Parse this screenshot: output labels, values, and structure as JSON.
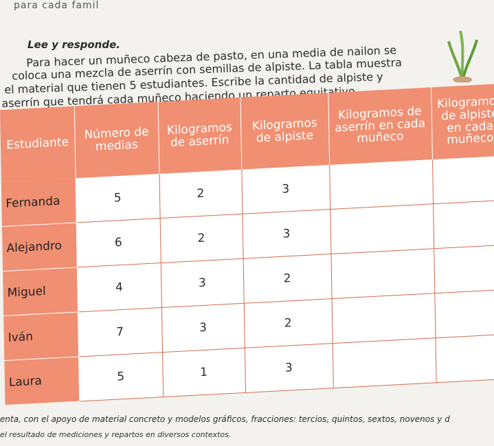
{
  "top_note": "para cada famil",
  "heading": "Lee y responde.",
  "paragraph": [
    "Para hacer un muñeco cabeza de pasto, en una media de nailon se",
    "coloca una mezcla de aserrín con semillas de alpiste. La tabla muestra",
    "el material que tienen 5 estudiantes. Escribe la cantidad de alpiste y",
    "aserrín que tendrá cada muñeco haciendo un reparto equitativo."
  ],
  "table": {
    "headers": [
      "Estudiante",
      "Número de medias",
      "Kilogramos de aserrín",
      "Kilogramos de alpiste",
      "Kilogramos de aserrín en cada muñeco",
      "Kilogramos de alpiste en cada muñeco"
    ],
    "rows": [
      {
        "name": "Fernanda",
        "medias": "5",
        "aserrin": "2",
        "alpiste": "3",
        "a1": "",
        "a2": ""
      },
      {
        "name": "Alejandro",
        "medias": "6",
        "aserrin": "2",
        "alpiste": "3",
        "a1": "",
        "a2": ""
      },
      {
        "name": "Miguel",
        "medias": "4",
        "aserrin": "3",
        "alpiste": "2",
        "a1": "",
        "a2": ""
      },
      {
        "name": "Iván",
        "medias": "7",
        "aserrin": "3",
        "alpiste": "2",
        "a1": "",
        "a2": ""
      },
      {
        "name": "Laura",
        "medias": "5",
        "aserrin": "1",
        "alpiste": "3",
        "a1": "",
        "a2": ""
      }
    ]
  },
  "footer": [
    "enta, con el apoyo de material concreto y modelos gráficos, fracciones: tercios, quintos, sextos, novenos y d",
    "el resultado de mediciones y repartos en diversos contextos."
  ],
  "colors": {
    "header_bg": "#f08f72",
    "cell_border": "#d26b4f"
  }
}
